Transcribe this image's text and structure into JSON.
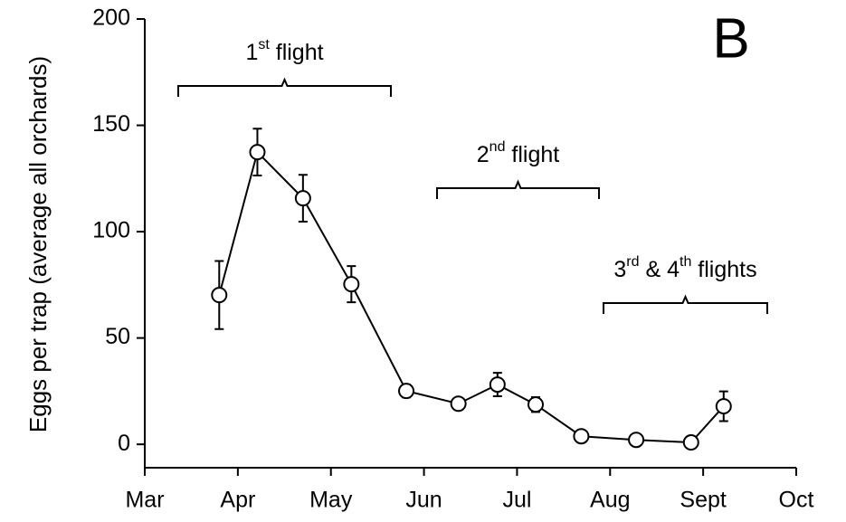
{
  "chart_data": {
    "type": "line",
    "panel_label": "B",
    "y_label": "Eggs per trap (average all orchards)",
    "xlim": [
      0,
      7
    ],
    "xticks": [
      {
        "value": 0,
        "label": "Mar"
      },
      {
        "value": 1,
        "label": "Apr"
      },
      {
        "value": 2,
        "label": "May"
      },
      {
        "value": 3,
        "label": "Jun"
      },
      {
        "value": 4,
        "label": "Jul"
      },
      {
        "value": 5,
        "label": "Aug"
      },
      {
        "value": 6,
        "label": "Sept"
      },
      {
        "value": 7,
        "label": "Oct"
      }
    ],
    "ylim": [
      -11,
      200
    ],
    "yticks": [
      0,
      50,
      100,
      150,
      200
    ],
    "color": "#000000",
    "x": [
      0.8,
      1.21,
      1.7,
      2.22,
      2.81,
      3.37,
      3.79,
      4.2,
      4.69,
      5.28,
      5.87,
      6.22
    ],
    "values": [
      70.2,
      137.4,
      115.7,
      75.3,
      25.1,
      19.1,
      28.1,
      18.7,
      3.8,
      2.1,
      0.9,
      17.9
    ],
    "errors": [
      16,
      11,
      11,
      8.5,
      3,
      null,
      5.5,
      3.5,
      null,
      null,
      null,
      7
    ],
    "annotations": [
      {
        "text": [
          "1",
          "st",
          " flight"
        ]
      },
      {
        "text": [
          "2",
          "nd",
          " flight"
        ]
      },
      {
        "text": [
          "3",
          "rd",
          " & 4",
          "th",
          " flights"
        ]
      }
    ]
  }
}
